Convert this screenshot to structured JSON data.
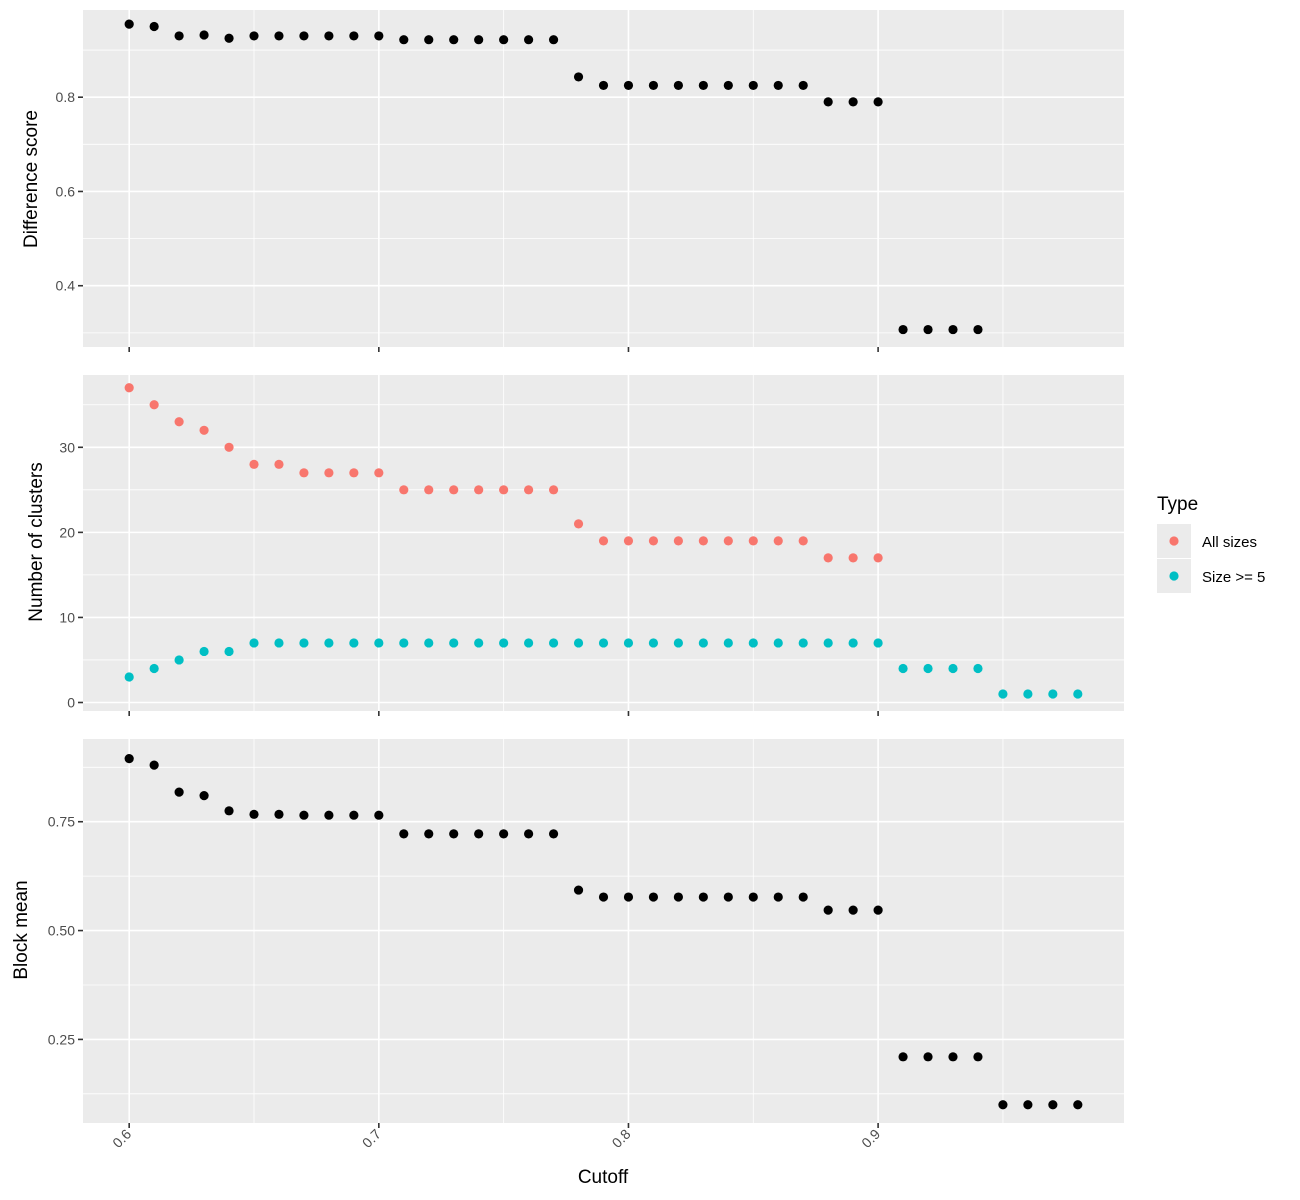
{
  "chart_data": [
    {
      "type": "scatter",
      "ylabel": "Difference score",
      "xlabel": "",
      "ylim": [
        0.27,
        0.985
      ],
      "yticks": [
        0.4,
        0.6,
        0.8
      ],
      "ytick_labels": [
        "0.4",
        "0.6",
        "0.8"
      ],
      "xlim": [
        0.5815,
        0.9985
      ],
      "xticks": [
        0.6,
        0.7,
        0.8,
        0.9
      ],
      "x_tick_labels_shown": false,
      "grid": true,
      "series": [
        {
          "color": "#000000",
          "x": [
            0.6,
            0.61,
            0.62,
            0.63,
            0.64,
            0.65,
            0.66,
            0.67,
            0.68,
            0.69,
            0.7,
            0.71,
            0.72,
            0.73,
            0.74,
            0.75,
            0.76,
            0.77,
            0.78,
            0.79,
            0.8,
            0.81,
            0.82,
            0.83,
            0.84,
            0.85,
            0.86,
            0.87,
            0.88,
            0.89,
            0.9,
            0.91,
            0.92,
            0.93,
            0.94
          ],
          "y": [
            0.955,
            0.95,
            0.93,
            0.932,
            0.925,
            0.93,
            0.93,
            0.93,
            0.93,
            0.93,
            0.93,
            0.922,
            0.922,
            0.922,
            0.922,
            0.922,
            0.922,
            0.922,
            0.843,
            0.825,
            0.825,
            0.825,
            0.825,
            0.825,
            0.825,
            0.825,
            0.825,
            0.825,
            0.79,
            0.79,
            0.79,
            0.307,
            0.307,
            0.307,
            0.307
          ]
        }
      ]
    },
    {
      "type": "scatter",
      "ylabel": "Number of clusters",
      "xlabel": "",
      "ylim": [
        -1,
        38.5
      ],
      "yticks": [
        0,
        10,
        20,
        30
      ],
      "ytick_labels": [
        "0",
        "10",
        "20",
        "30"
      ],
      "xlim": [
        0.5815,
        0.9985
      ],
      "xticks": [
        0.6,
        0.7,
        0.8,
        0.9
      ],
      "x_tick_labels_shown": false,
      "grid": true,
      "legend": {
        "title": "Type",
        "position": "right",
        "entries": [
          "All sizes",
          "Size >= 5"
        ]
      },
      "series": [
        {
          "name": "All sizes",
          "color": "#f8766d",
          "x": [
            0.6,
            0.61,
            0.62,
            0.63,
            0.64,
            0.65,
            0.66,
            0.67,
            0.68,
            0.69,
            0.7,
            0.71,
            0.72,
            0.73,
            0.74,
            0.75,
            0.76,
            0.77,
            0.78,
            0.79,
            0.8,
            0.81,
            0.82,
            0.83,
            0.84,
            0.85,
            0.86,
            0.87,
            0.88,
            0.89,
            0.9
          ],
          "y": [
            37,
            35,
            33,
            32,
            30,
            28,
            28,
            27,
            27,
            27,
            27,
            25,
            25,
            25,
            25,
            25,
            25,
            25,
            21,
            19,
            19,
            19,
            19,
            19,
            19,
            19,
            19,
            19,
            17,
            17,
            17
          ]
        },
        {
          "name": "Size >= 5",
          "color": "#00bfc4",
          "x": [
            0.6,
            0.61,
            0.62,
            0.63,
            0.64,
            0.65,
            0.66,
            0.67,
            0.68,
            0.69,
            0.7,
            0.71,
            0.72,
            0.73,
            0.74,
            0.75,
            0.76,
            0.77,
            0.78,
            0.79,
            0.8,
            0.81,
            0.82,
            0.83,
            0.84,
            0.85,
            0.86,
            0.87,
            0.88,
            0.89,
            0.9,
            0.91,
            0.92,
            0.93,
            0.94,
            0.95,
            0.96,
            0.97,
            0.98
          ],
          "y": [
            3,
            4,
            5,
            6,
            6,
            7,
            7,
            7,
            7,
            7,
            7,
            7,
            7,
            7,
            7,
            7,
            7,
            7,
            7,
            7,
            7,
            7,
            7,
            7,
            7,
            7,
            7,
            7,
            7,
            7,
            7,
            4,
            4,
            4,
            4,
            1,
            1,
            1,
            1
          ]
        }
      ]
    },
    {
      "type": "scatter",
      "ylabel": "Block mean",
      "xlabel": "Cutoff",
      "ylim": [
        0.058,
        0.94
      ],
      "yticks": [
        0.25,
        0.5,
        0.75
      ],
      "ytick_labels": [
        "0.25",
        "0.50",
        "0.75"
      ],
      "xlim": [
        0.5815,
        0.9985
      ],
      "xticks": [
        0.6,
        0.7,
        0.8,
        0.9
      ],
      "xtick_labels": [
        "0.6",
        "0.7",
        "0.8",
        "0.9"
      ],
      "x_tick_labels_shown": true,
      "grid": true,
      "series": [
        {
          "color": "#000000",
          "x": [
            0.6,
            0.61,
            0.62,
            0.63,
            0.64,
            0.65,
            0.66,
            0.67,
            0.68,
            0.69,
            0.7,
            0.71,
            0.72,
            0.73,
            0.74,
            0.75,
            0.76,
            0.77,
            0.78,
            0.79,
            0.8,
            0.81,
            0.82,
            0.83,
            0.84,
            0.85,
            0.86,
            0.87,
            0.88,
            0.89,
            0.9,
            0.91,
            0.92,
            0.93,
            0.94,
            0.95,
            0.96,
            0.97,
            0.98
          ],
          "y": [
            0.895,
            0.88,
            0.818,
            0.81,
            0.775,
            0.767,
            0.767,
            0.765,
            0.765,
            0.765,
            0.765,
            0.722,
            0.722,
            0.722,
            0.722,
            0.722,
            0.722,
            0.722,
            0.593,
            0.577,
            0.577,
            0.577,
            0.577,
            0.577,
            0.577,
            0.577,
            0.577,
            0.577,
            0.547,
            0.547,
            0.547,
            0.21,
            0.21,
            0.21,
            0.21,
            0.1,
            0.1,
            0.1,
            0.1
          ]
        }
      ]
    }
  ]
}
